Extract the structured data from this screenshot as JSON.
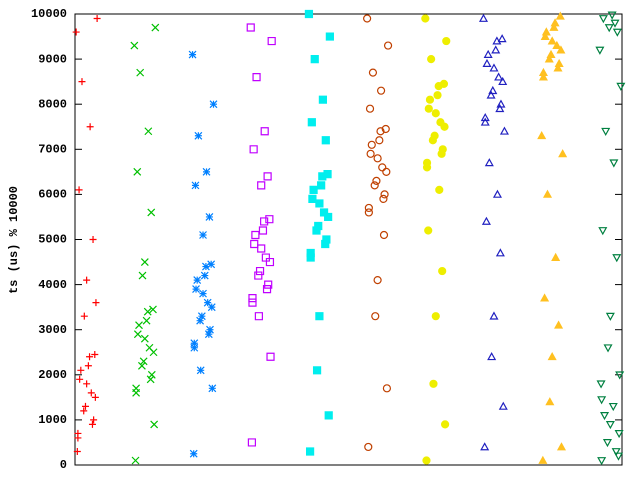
{
  "chart_data": {
    "type": "scatter",
    "ylabel": "ts (us) % 10000",
    "xlim": [
      -0.2,
      9.2
    ],
    "ylim": [
      0,
      10000
    ],
    "yticks": [
      0,
      1000,
      2000,
      3000,
      4000,
      5000,
      6000,
      7000,
      8000,
      9000,
      10000
    ],
    "series": [
      {
        "color": "#ff0000",
        "marker": "plus",
        "x": [
          -0.15,
          0.1,
          -0.05,
          0.15,
          0,
          -0.1,
          0.05,
          -0.15,
          0.12,
          -0.02,
          0.08,
          -0.12,
          0.03,
          0.14,
          -0.18,
          0.18,
          -0.08,
          0.06,
          -0.13,
          0.11,
          0,
          -0.04,
          0.16,
          -0.16
        ],
        "values": [
          600,
          900,
          1200,
          1500,
          1800,
          2100,
          2400,
          700,
          1000,
          1300,
          1600,
          1900,
          2200,
          2450,
          9600,
          9900,
          8500,
          7500,
          6100,
          5000,
          4100,
          3300,
          3600,
          300
        ]
      },
      {
        "color": "#00c000",
        "marker": "cross",
        "x": [
          0.85,
          1.1,
          0.95,
          1.15,
          1,
          0.9,
          1.05,
          0.85,
          1.12,
          0.98,
          1.08,
          0.88,
          1.03,
          1.14,
          0.82,
          1.18,
          0.92,
          1.06,
          0.87,
          1.11,
          1,
          0.96,
          1.16,
          0.84
        ],
        "values": [
          1600,
          1900,
          2200,
          2500,
          2800,
          3100,
          3400,
          1700,
          2000,
          2300,
          2600,
          2900,
          3200,
          3450,
          9300,
          9700,
          8700,
          7400,
          6500,
          5600,
          4500,
          4200,
          900,
          100
        ]
      },
      {
        "color": "#0080ff",
        "marker": "star",
        "x": [
          1.85,
          2.1,
          1.95,
          2.15,
          2,
          1.9,
          2.05,
          1.85,
          2.12,
          1.98,
          2.08,
          1.88,
          2.03,
          2.14,
          1.82,
          2.18,
          1.92,
          2.06,
          1.87,
          2.11,
          2,
          1.96,
          2.16,
          1.84
        ],
        "values": [
          2600,
          2900,
          3200,
          3500,
          3800,
          4100,
          4400,
          2700,
          3000,
          3300,
          3600,
          3900,
          4200,
          4450,
          9100,
          8000,
          7300,
          6500,
          6200,
          5500,
          5100,
          2100,
          1700,
          250
        ]
      },
      {
        "color": "#c000ff",
        "marker": "square",
        "x": [
          2.85,
          3.1,
          2.95,
          3.15,
          3,
          2.9,
          3.05,
          2.85,
          3.12,
          2.98,
          3.08,
          2.88,
          3.03,
          3.14,
          2.82,
          3.18,
          2.92,
          3.06,
          2.87,
          3.11,
          3,
          2.96,
          3.16,
          2.84
        ],
        "values": [
          3600,
          3900,
          4200,
          4500,
          4800,
          5100,
          5400,
          3700,
          4000,
          4300,
          4600,
          4900,
          5200,
          5450,
          9700,
          9400,
          8600,
          7400,
          7000,
          6400,
          6200,
          3300,
          2400,
          500
        ]
      },
      {
        "color": "#00eeee",
        "marker": "square-filled",
        "x": [
          3.85,
          4.1,
          3.95,
          4.15,
          4,
          3.9,
          4.05,
          3.85,
          4.12,
          3.98,
          4.08,
          3.88,
          4.03,
          4.14,
          3.82,
          4.18,
          3.92,
          4.06,
          3.87,
          4.11,
          4,
          3.96,
          4.16,
          3.84
        ],
        "values": [
          4600,
          4900,
          5200,
          5500,
          5800,
          6100,
          6400,
          4700,
          5000,
          5300,
          5600,
          5900,
          6200,
          6450,
          10000,
          9500,
          9000,
          8100,
          7600,
          7200,
          3300,
          2100,
          1100,
          300
        ]
      },
      {
        "color": "#c04000",
        "marker": "circle",
        "x": [
          4.85,
          5.1,
          4.95,
          5.15,
          5,
          4.9,
          5.05,
          4.85,
          5.12,
          4.98,
          5.08,
          4.88,
          5.03,
          5.14,
          4.82,
          5.18,
          4.92,
          5.06,
          4.87,
          5.11,
          5,
          4.96,
          5.16,
          4.84
        ],
        "values": [
          5600,
          5900,
          6200,
          6500,
          6800,
          7100,
          7400,
          5700,
          6000,
          6300,
          6600,
          6900,
          7200,
          7450,
          9900,
          9300,
          8700,
          8300,
          7900,
          5100,
          4100,
          3300,
          1700,
          400
        ]
      },
      {
        "color": "#eeee00",
        "marker": "circle-filled",
        "x": [
          5.85,
          6.1,
          5.95,
          6.15,
          6,
          5.9,
          6.05,
          5.85,
          6.12,
          5.98,
          6.08,
          5.88,
          6.03,
          6.14,
          5.82,
          6.18,
          5.92,
          6.06,
          5.87,
          6.11,
          6,
          5.96,
          6.16,
          5.84
        ],
        "values": [
          6600,
          6900,
          7200,
          7500,
          7800,
          8100,
          8400,
          6700,
          7000,
          7300,
          7600,
          7900,
          8200,
          8450,
          9900,
          9400,
          9000,
          6100,
          5200,
          4300,
          3300,
          1800,
          900,
          100
        ]
      },
      {
        "color": "#2020c0",
        "marker": "triangle",
        "x": [
          6.85,
          7.1,
          6.95,
          7.15,
          7,
          6.9,
          7.05,
          6.85,
          7.12,
          6.98,
          7.08,
          6.88,
          7.03,
          7.14,
          6.82,
          7.18,
          6.92,
          7.06,
          6.87,
          7.11,
          7,
          6.96,
          7.16,
          6.84
        ],
        "values": [
          7600,
          7900,
          8200,
          8500,
          8800,
          9100,
          9400,
          7700,
          8000,
          8300,
          8600,
          8900,
          9200,
          9450,
          9900,
          7400,
          6700,
          6000,
          5400,
          4700,
          3300,
          2400,
          1300,
          400
        ]
      },
      {
        "color": "#ffc020",
        "marker": "triangle-filled",
        "x": [
          7.85,
          8.1,
          7.95,
          8.15,
          8,
          7.9,
          8.05,
          7.85,
          8.12,
          7.98,
          8.08,
          7.88,
          8.03,
          8.14,
          7.82,
          8.18,
          7.92,
          8.06,
          7.87,
          8.11,
          8,
          7.96,
          8.16,
          7.84
        ],
        "values": [
          8600,
          8800,
          9000,
          9200,
          9400,
          9600,
          9800,
          8700,
          8900,
          9100,
          9300,
          9500,
          9700,
          9950,
          7300,
          6900,
          6000,
          4600,
          3700,
          3100,
          2400,
          1400,
          400,
          100
        ]
      },
      {
        "color": "#008040",
        "marker": "triangle-down",
        "x": [
          8.85,
          9.1,
          8.95,
          9.15,
          9,
          8.9,
          9.05,
          8.85,
          9.12,
          8.98,
          9.08,
          8.88,
          9.03,
          9.14,
          8.82,
          9.18,
          8.92,
          9.06,
          8.87,
          9.11,
          9,
          8.96,
          9.16,
          8.84
        ],
        "values": [
          100,
          300,
          500,
          700,
          900,
          1100,
          1300,
          1450,
          9600,
          9700,
          9800,
          9900,
          9980,
          200,
          9200,
          8400,
          7400,
          6700,
          5200,
          4600,
          3300,
          2600,
          2000,
          1800
        ]
      }
    ]
  }
}
